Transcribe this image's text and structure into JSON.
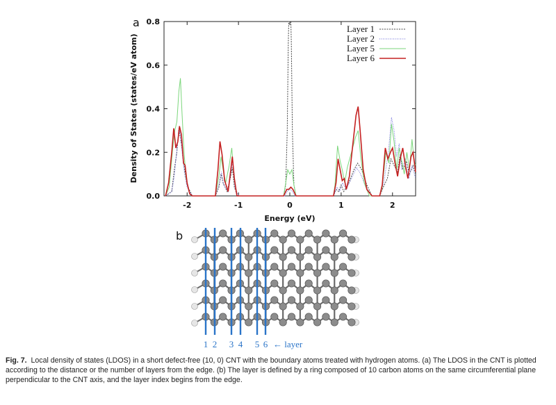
{
  "panel_a_label": "a",
  "panel_b_label": "b",
  "chart_data": {
    "type": "line",
    "title": "",
    "xlabel": "Energy (eV)",
    "ylabel": "Density of States (states/eV atom)",
    "xlim": [
      -2.45,
      2.45
    ],
    "ylim": [
      0,
      0.8
    ],
    "xticks": [
      -2,
      -1,
      0,
      1,
      2
    ],
    "yticks": [
      0.0,
      0.2,
      0.4,
      0.6,
      0.8
    ],
    "legend_position": "top-right",
    "grid": false,
    "series": [
      {
        "name": "Layer 1",
        "color": "#444444",
        "dash": "2,1.5",
        "points": [
          [
            -2.42,
            0
          ],
          [
            -2.3,
            0.02
          ],
          [
            -2.25,
            0.12
          ],
          [
            -2.2,
            0.2
          ],
          [
            -2.16,
            0.31
          ],
          [
            -2.1,
            0.22
          ],
          [
            -2.05,
            0.12
          ],
          [
            -2.0,
            0.05
          ],
          [
            -1.9,
            0.0
          ],
          [
            -1.45,
            0.0
          ],
          [
            -1.38,
            0.04
          ],
          [
            -1.34,
            0.1
          ],
          [
            -1.3,
            0.06
          ],
          [
            -1.22,
            0.02
          ],
          [
            -1.15,
            0.09
          ],
          [
            -1.12,
            0.13
          ],
          [
            -1.08,
            0.04
          ],
          [
            -1.02,
            0.0
          ],
          [
            -0.12,
            0.0
          ],
          [
            -0.08,
            0.05
          ],
          [
            -0.05,
            0.3
          ],
          [
            -0.03,
            0.7
          ],
          [
            -0.02,
            0.8
          ],
          [
            0.02,
            0.8
          ],
          [
            0.03,
            0.7
          ],
          [
            0.05,
            0.3
          ],
          [
            0.08,
            0.05
          ],
          [
            0.12,
            0.0
          ],
          [
            0.85,
            0.0
          ],
          [
            0.9,
            0.03
          ],
          [
            0.95,
            0.02
          ],
          [
            1.0,
            0.05
          ],
          [
            1.05,
            0.02
          ],
          [
            1.15,
            0.06
          ],
          [
            1.25,
            0.12
          ],
          [
            1.32,
            0.15
          ],
          [
            1.4,
            0.12
          ],
          [
            1.5,
            0.05
          ],
          [
            1.6,
            0.0
          ],
          [
            1.75,
            0.0
          ],
          [
            1.82,
            0.04
          ],
          [
            1.9,
            0.08
          ],
          [
            1.97,
            0.17
          ],
          [
            2.03,
            0.14
          ],
          [
            2.1,
            0.11
          ],
          [
            2.15,
            0.19
          ],
          [
            2.2,
            0.12
          ],
          [
            2.27,
            0.16
          ],
          [
            2.33,
            0.1
          ],
          [
            2.4,
            0.14
          ],
          [
            2.45,
            0.1
          ]
        ]
      },
      {
        "name": "Layer 2",
        "color": "#6a6ad8",
        "dash": "1,1.5",
        "points": [
          [
            -2.42,
            0
          ],
          [
            -2.3,
            0.02
          ],
          [
            -2.25,
            0.09
          ],
          [
            -2.18,
            0.26
          ],
          [
            -2.14,
            0.3
          ],
          [
            -2.1,
            0.2
          ],
          [
            -2.05,
            0.1
          ],
          [
            -2.0,
            0.04
          ],
          [
            -1.9,
            0.0
          ],
          [
            -1.45,
            0.0
          ],
          [
            -1.37,
            0.06
          ],
          [
            -1.33,
            0.11
          ],
          [
            -1.29,
            0.05
          ],
          [
            -1.2,
            0.02
          ],
          [
            -1.15,
            0.1
          ],
          [
            -1.11,
            0.16
          ],
          [
            -1.07,
            0.04
          ],
          [
            -1.0,
            0.0
          ],
          [
            -0.1,
            0.0
          ],
          [
            -0.05,
            0.02
          ],
          [
            0.0,
            0.03
          ],
          [
            0.05,
            0.02
          ],
          [
            0.1,
            0.0
          ],
          [
            0.85,
            0.0
          ],
          [
            0.92,
            0.04
          ],
          [
            0.97,
            0.02
          ],
          [
            1.03,
            0.06
          ],
          [
            1.1,
            0.03
          ],
          [
            1.2,
            0.08
          ],
          [
            1.3,
            0.13
          ],
          [
            1.38,
            0.1
          ],
          [
            1.48,
            0.04
          ],
          [
            1.6,
            0.0
          ],
          [
            1.75,
            0.0
          ],
          [
            1.83,
            0.06
          ],
          [
            1.92,
            0.2
          ],
          [
            1.98,
            0.36
          ],
          [
            2.03,
            0.3
          ],
          [
            2.08,
            0.18
          ],
          [
            2.13,
            0.24
          ],
          [
            2.18,
            0.12
          ],
          [
            2.25,
            0.17
          ],
          [
            2.32,
            0.08
          ],
          [
            2.38,
            0.14
          ],
          [
            2.45,
            0.08
          ]
        ]
      },
      {
        "name": "Layer 5",
        "color": "#7bd67b",
        "dash": "",
        "points": [
          [
            -2.42,
            0
          ],
          [
            -2.35,
            0.04
          ],
          [
            -2.28,
            0.22
          ],
          [
            -2.24,
            0.3
          ],
          [
            -2.2,
            0.34
          ],
          [
            -2.16,
            0.48
          ],
          [
            -2.13,
            0.54
          ],
          [
            -2.1,
            0.38
          ],
          [
            -2.06,
            0.2
          ],
          [
            -2.02,
            0.08
          ],
          [
            -1.95,
            0.01
          ],
          [
            -1.9,
            0.0
          ],
          [
            -1.45,
            0.0
          ],
          [
            -1.38,
            0.09
          ],
          [
            -1.34,
            0.18
          ],
          [
            -1.3,
            0.12
          ],
          [
            -1.25,
            0.06
          ],
          [
            -1.18,
            0.14
          ],
          [
            -1.13,
            0.22
          ],
          [
            -1.09,
            0.1
          ],
          [
            -1.03,
            0.0
          ],
          [
            -0.12,
            0.0
          ],
          [
            -0.08,
            0.06
          ],
          [
            -0.04,
            0.12
          ],
          [
            0.0,
            0.1
          ],
          [
            0.04,
            0.12
          ],
          [
            0.08,
            0.05
          ],
          [
            0.12,
            0.0
          ],
          [
            0.85,
            0.0
          ],
          [
            0.88,
            0.05
          ],
          [
            0.93,
            0.23
          ],
          [
            0.98,
            0.16
          ],
          [
            1.02,
            0.12
          ],
          [
            1.07,
            0.06
          ],
          [
            1.12,
            0.13
          ],
          [
            1.2,
            0.2
          ],
          [
            1.28,
            0.27
          ],
          [
            1.33,
            0.3
          ],
          [
            1.38,
            0.18
          ],
          [
            1.45,
            0.06
          ],
          [
            1.55,
            0.0
          ],
          [
            1.75,
            0.0
          ],
          [
            1.8,
            0.04
          ],
          [
            1.87,
            0.2
          ],
          [
            1.93,
            0.15
          ],
          [
            1.98,
            0.33
          ],
          [
            2.03,
            0.25
          ],
          [
            2.08,
            0.12
          ],
          [
            2.13,
            0.22
          ],
          [
            2.18,
            0.16
          ],
          [
            2.23,
            0.1
          ],
          [
            2.28,
            0.2
          ],
          [
            2.33,
            0.12
          ],
          [
            2.38,
            0.26
          ],
          [
            2.42,
            0.16
          ],
          [
            2.45,
            0.14
          ]
        ]
      },
      {
        "name": "Layer 6",
        "color": "#c42020",
        "dash": "",
        "points": [
          [
            -2.42,
            0
          ],
          [
            -2.36,
            0.06
          ],
          [
            -2.3,
            0.2
          ],
          [
            -2.26,
            0.31
          ],
          [
            -2.22,
            0.22
          ],
          [
            -2.18,
            0.25
          ],
          [
            -2.15,
            0.32
          ],
          [
            -2.11,
            0.28
          ],
          [
            -2.07,
            0.15
          ],
          [
            -2.04,
            0.14
          ],
          [
            -2.0,
            0.06
          ],
          [
            -1.95,
            0.01
          ],
          [
            -1.9,
            0.0
          ],
          [
            -1.45,
            0.0
          ],
          [
            -1.4,
            0.12
          ],
          [
            -1.36,
            0.25
          ],
          [
            -1.32,
            0.19
          ],
          [
            -1.27,
            0.07
          ],
          [
            -1.2,
            0.02
          ],
          [
            -1.16,
            0.1
          ],
          [
            -1.12,
            0.18
          ],
          [
            -1.08,
            0.08
          ],
          [
            -1.03,
            0.0
          ],
          [
            -0.12,
            0.0
          ],
          [
            -0.06,
            0.03
          ],
          [
            -0.02,
            0.03
          ],
          [
            0.02,
            0.04
          ],
          [
            0.06,
            0.03
          ],
          [
            0.12,
            0.0
          ],
          [
            0.85,
            0.0
          ],
          [
            0.9,
            0.06
          ],
          [
            0.94,
            0.17
          ],
          [
            0.98,
            0.12
          ],
          [
            1.02,
            0.07
          ],
          [
            1.06,
            0.08
          ],
          [
            1.1,
            0.03
          ],
          [
            1.16,
            0.09
          ],
          [
            1.22,
            0.22
          ],
          [
            1.29,
            0.37
          ],
          [
            1.33,
            0.41
          ],
          [
            1.37,
            0.3
          ],
          [
            1.43,
            0.12
          ],
          [
            1.5,
            0.03
          ],
          [
            1.6,
            0.0
          ],
          [
            1.75,
            0.0
          ],
          [
            1.8,
            0.05
          ],
          [
            1.86,
            0.22
          ],
          [
            1.91,
            0.17
          ],
          [
            1.96,
            0.2
          ],
          [
            2.0,
            0.22
          ],
          [
            2.05,
            0.15
          ],
          [
            2.1,
            0.09
          ],
          [
            2.15,
            0.17
          ],
          [
            2.2,
            0.22
          ],
          [
            2.25,
            0.14
          ],
          [
            2.3,
            0.08
          ],
          [
            2.36,
            0.18
          ],
          [
            2.4,
            0.2
          ],
          [
            2.45,
            0.11
          ]
        ]
      }
    ]
  },
  "layer_numbers": [
    "1",
    "2",
    "3",
    "4",
    "5",
    "6"
  ],
  "layer_text": "← layer",
  "caption": {
    "fig_label": "Fig. 7.",
    "text": "Local density of states (LDOS) in a short defect-free (10, 0) CNT with the boundary atoms treated with hydrogen atoms. (a) The LDOS in the CNT is plotted according to the distance or the number of layers from the edge. (b) The layer is defined by a ring composed of 10 carbon atoms on the same circumferential plane perpendicular to the CNT axis, and the layer index begins from the edge."
  },
  "colors": {
    "layer_line": "#2a74c8",
    "carbon_atom": "#8c8c8c",
    "hydrogen_atom": "#e6e6e6",
    "bond": "#6a6a6a"
  }
}
